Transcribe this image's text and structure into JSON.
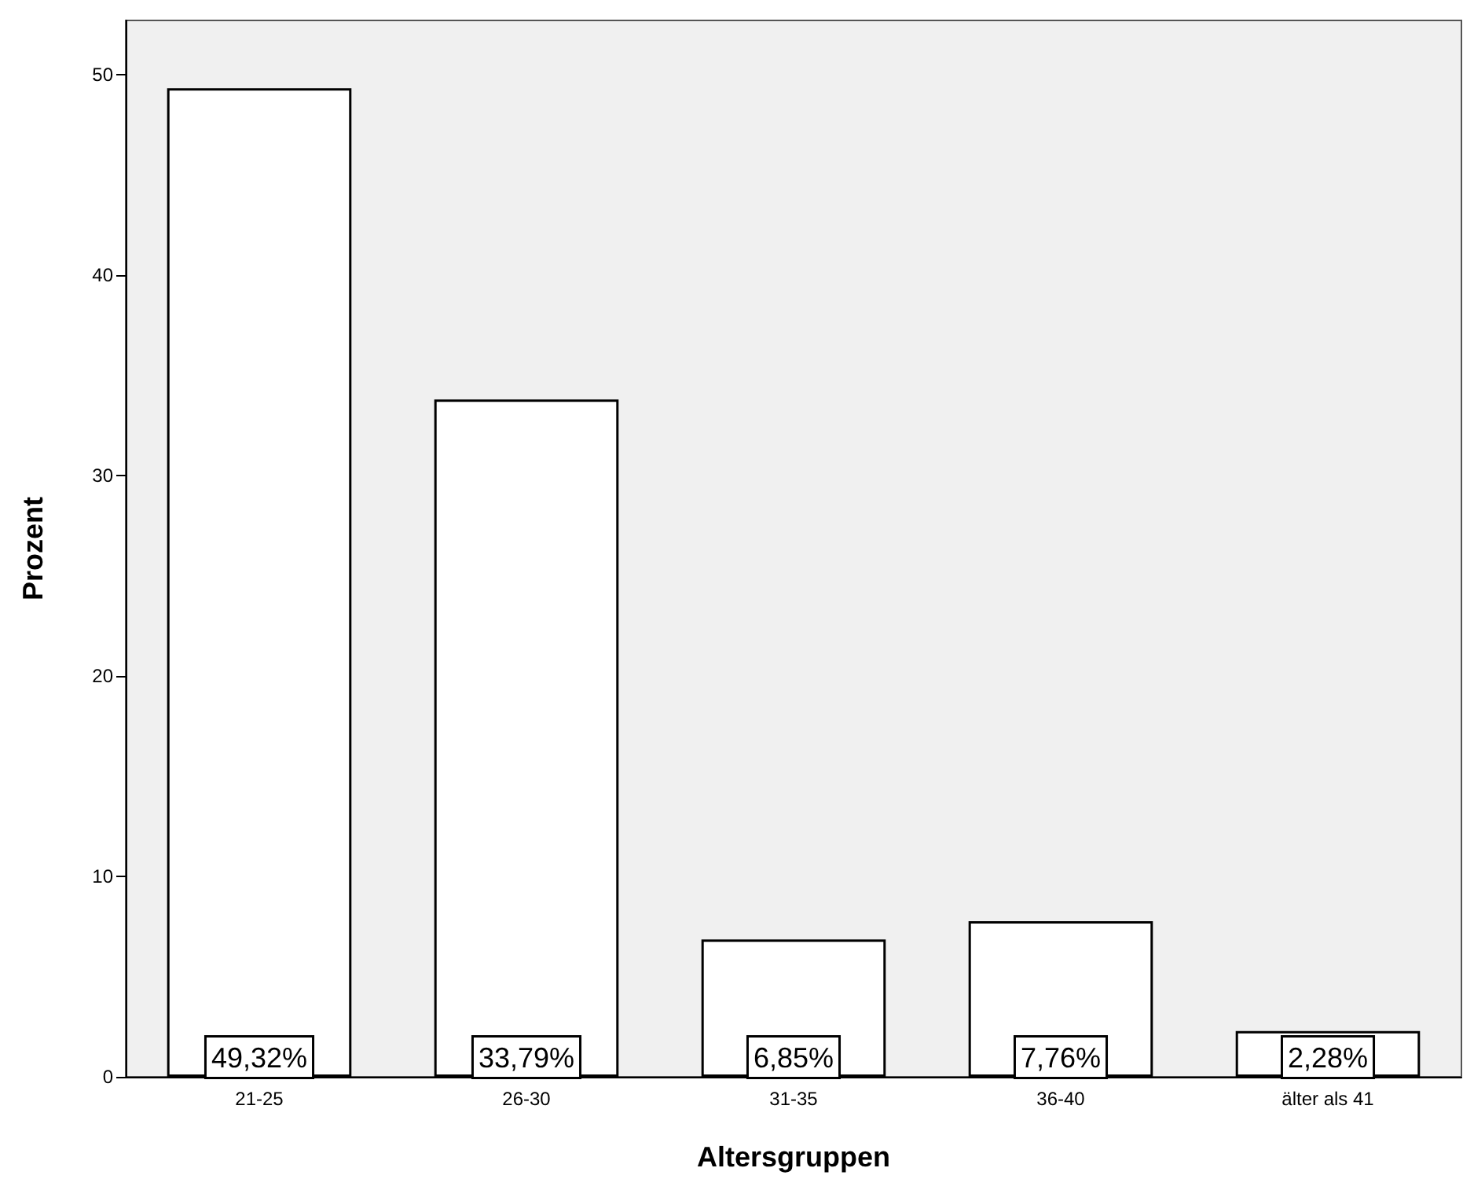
{
  "chart_data": {
    "type": "bar",
    "xlabel": "Altersgruppen",
    "ylabel": "Prozent",
    "categories": [
      "21-25",
      "26-30",
      "31-35",
      "36-40",
      "älter als 41"
    ],
    "values": [
      49.32,
      33.79,
      6.85,
      7.76,
      2.28
    ],
    "value_labels": [
      "49,32%",
      "33,79%",
      "6,85%",
      "7,76%",
      "2,28%"
    ],
    "color": "#ffffff",
    "ylim": [
      0,
      52.7
    ],
    "yticks": [
      0,
      10,
      20,
      30,
      40,
      50
    ],
    "grid": false
  }
}
